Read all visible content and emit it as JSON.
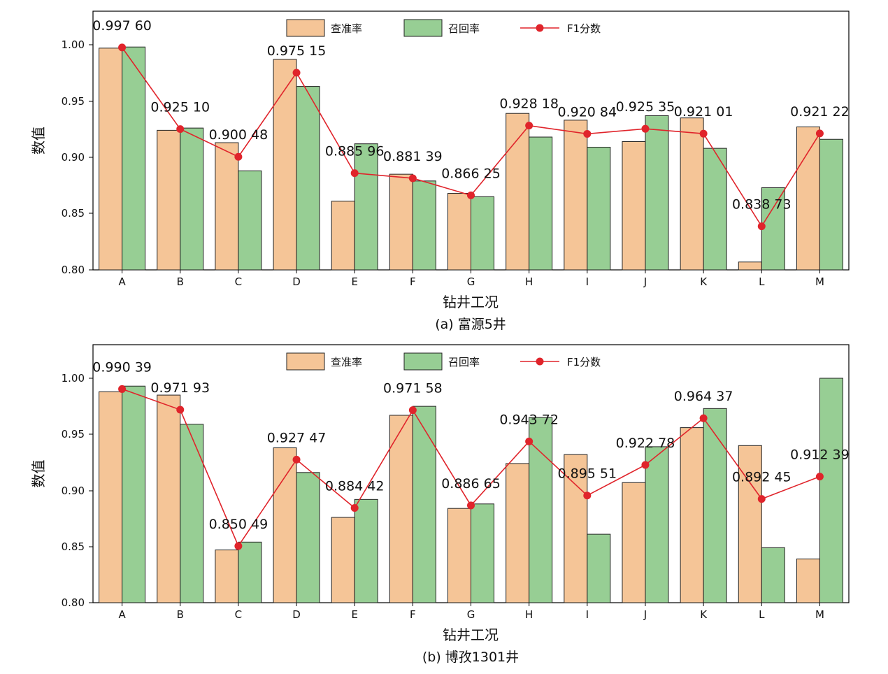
{
  "colors": {
    "precision": "#F5C597",
    "recall": "#97CE94",
    "f1": "#E0242B",
    "bar_edge": "#222222",
    "axis": "#000000"
  },
  "legend": {
    "precision": "查准率",
    "recall": "召回率",
    "f1": "F1分数"
  },
  "chart_data": [
    {
      "type": "bar",
      "caption": "(a) 富源5井",
      "xlabel": "钻井工况",
      "ylabel": "数值",
      "ylim": [
        0.8,
        1.03
      ],
      "yticks": [
        "0.80",
        "0.85",
        "0.90",
        "0.95",
        "1.00"
      ],
      "categories": [
        "A",
        "B",
        "C",
        "D",
        "E",
        "F",
        "G",
        "H",
        "I",
        "J",
        "K",
        "L",
        "M"
      ],
      "series": [
        {
          "name": "查准率",
          "kind": "bar",
          "values": [
            0.997,
            0.924,
            0.913,
            0.987,
            0.861,
            0.885,
            0.868,
            0.939,
            0.933,
            0.914,
            0.935,
            0.807,
            0.927
          ]
        },
        {
          "name": "召回率",
          "kind": "bar",
          "values": [
            0.998,
            0.926,
            0.888,
            0.963,
            0.912,
            0.879,
            0.865,
            0.918,
            0.909,
            0.937,
            0.908,
            0.873,
            0.916
          ]
        },
        {
          "name": "F1分数",
          "kind": "line",
          "values": [
            0.9976,
            0.9251,
            0.90048,
            0.97515,
            0.88596,
            0.88139,
            0.86625,
            0.92818,
            0.92084,
            0.92535,
            0.92101,
            0.83873,
            0.92122
          ]
        }
      ],
      "point_labels": [
        "0.997 60",
        "0.925 10",
        "0.900 48",
        "0.975 15",
        "0.885 96",
        "0.881 39",
        "0.866 25",
        "0.928 18",
        "0.920 84",
        "0.925 35",
        "0.921 01",
        "0.838 73",
        "0.921 22"
      ]
    },
    {
      "type": "bar",
      "caption": "(b) 博孜1301井",
      "xlabel": "钻井工况",
      "ylabel": "数值",
      "ylim": [
        0.8,
        1.03
      ],
      "yticks": [
        "0.80",
        "0.85",
        "0.90",
        "0.95",
        "1.00"
      ],
      "categories": [
        "A",
        "B",
        "C",
        "D",
        "E",
        "F",
        "G",
        "H",
        "I",
        "J",
        "K",
        "L",
        "M"
      ],
      "series": [
        {
          "name": "查准率",
          "kind": "bar",
          "values": [
            0.988,
            0.985,
            0.847,
            0.938,
            0.876,
            0.967,
            0.884,
            0.924,
            0.932,
            0.907,
            0.956,
            0.94,
            0.839
          ]
        },
        {
          "name": "召回率",
          "kind": "bar",
          "values": [
            0.993,
            0.959,
            0.854,
            0.916,
            0.892,
            0.975,
            0.888,
            0.965,
            0.861,
            0.939,
            0.973,
            0.849,
            1.0
          ]
        },
        {
          "name": "F1分数",
          "kind": "line",
          "values": [
            0.99039,
            0.97193,
            0.85049,
            0.92747,
            0.88442,
            0.97158,
            0.88665,
            0.94372,
            0.89551,
            0.92278,
            0.96437,
            0.89245,
            0.91239
          ]
        }
      ],
      "point_labels": [
        "0.990 39",
        "0.971 93",
        "0.850 49",
        "0.927 47",
        "0.884 42",
        "0.971 58",
        "0.886 65",
        "0.943 72",
        "0.895 51",
        "0.922 78",
        "0.964 37",
        "0.892 45",
        "0.912 39"
      ]
    }
  ]
}
